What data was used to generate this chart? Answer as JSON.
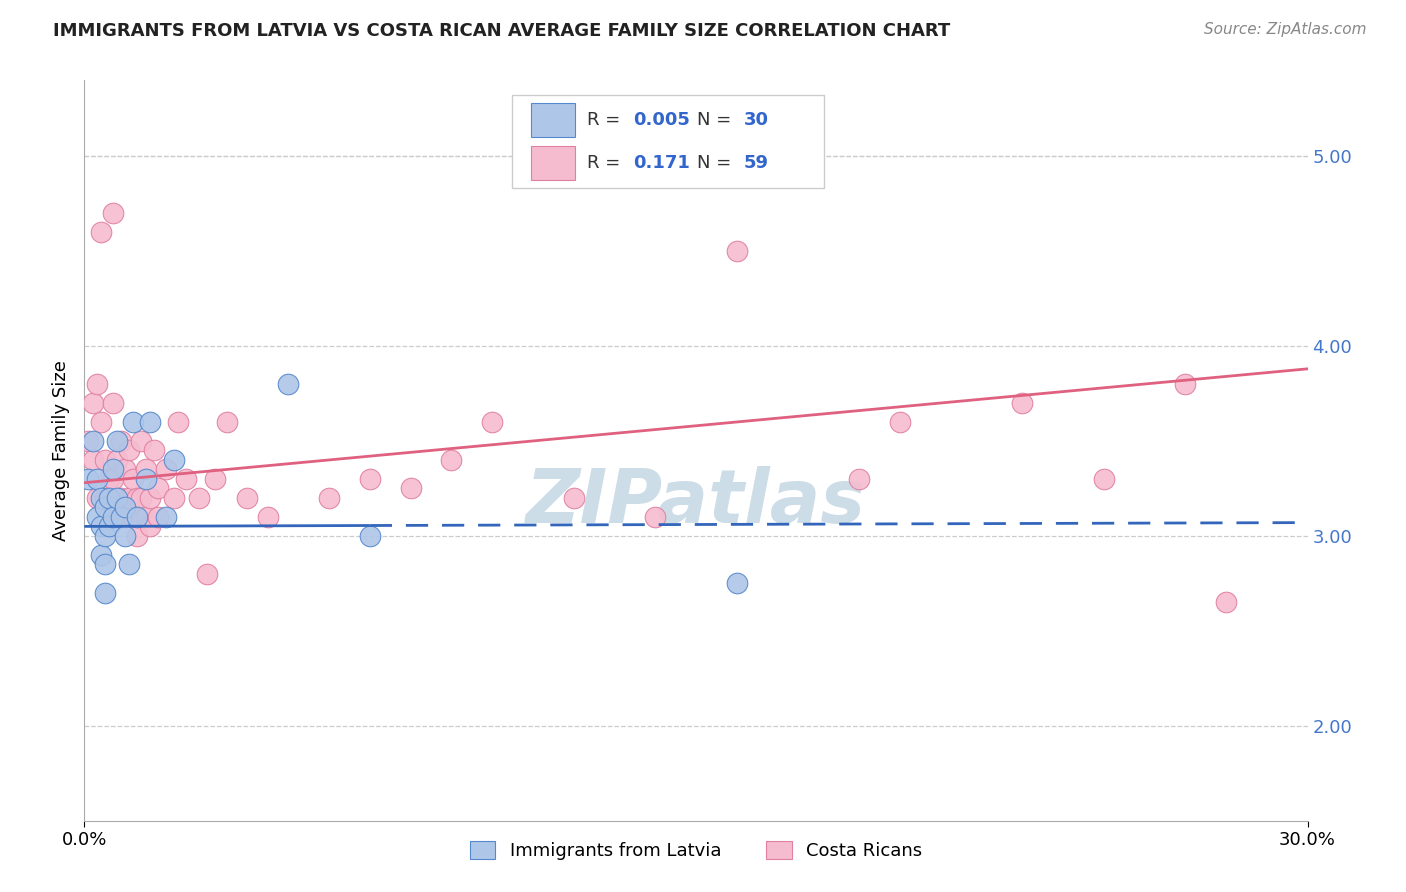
{
  "title": "IMMIGRANTS FROM LATVIA VS COSTA RICAN AVERAGE FAMILY SIZE CORRELATION CHART",
  "source": "Source: ZipAtlas.com",
  "ylabel": "Average Family Size",
  "xlim": [
    0.0,
    0.3
  ],
  "ylim": [
    1.5,
    5.4
  ],
  "yticks": [
    2.0,
    3.0,
    4.0,
    5.0
  ],
  "xticks": [
    0.0,
    0.3
  ],
  "xtick_labels": [
    "0.0%",
    "30.0%"
  ],
  "legend_labels": [
    "Immigrants from Latvia",
    "Costa Ricans"
  ],
  "blue_R": "0.005",
  "blue_N": "30",
  "pink_R": "0.171",
  "pink_N": "59",
  "blue_color": "#aec6e8",
  "pink_color": "#f5bcd0",
  "blue_edge_color": "#5588cc",
  "pink_edge_color": "#e080a0",
  "blue_line_color": "#3366bb",
  "pink_line_color": "#e06080",
  "watermark": "ZIPatlas",
  "watermark_color": "#ccdde8",
  "blue_line_y0": 3.05,
  "blue_line_y1": 3.07,
  "pink_line_y0": 3.28,
  "pink_line_y1": 3.88,
  "blue_scatter_x": [
    0.001,
    0.002,
    0.003,
    0.003,
    0.004,
    0.004,
    0.004,
    0.005,
    0.005,
    0.005,
    0.005,
    0.006,
    0.006,
    0.007,
    0.007,
    0.008,
    0.008,
    0.009,
    0.01,
    0.01,
    0.011,
    0.012,
    0.013,
    0.015,
    0.016,
    0.02,
    0.022,
    0.05,
    0.07,
    0.16
  ],
  "blue_scatter_y": [
    3.3,
    3.5,
    3.3,
    3.1,
    3.2,
    3.05,
    2.9,
    3.15,
    3.0,
    2.85,
    2.7,
    3.2,
    3.05,
    3.35,
    3.1,
    3.5,
    3.2,
    3.1,
    3.15,
    3.0,
    2.85,
    3.6,
    3.1,
    3.3,
    3.6,
    3.1,
    3.4,
    3.8,
    3.0,
    2.75
  ],
  "pink_scatter_x": [
    0.001,
    0.002,
    0.002,
    0.003,
    0.003,
    0.004,
    0.004,
    0.005,
    0.005,
    0.006,
    0.006,
    0.007,
    0.007,
    0.007,
    0.008,
    0.008,
    0.009,
    0.009,
    0.01,
    0.01,
    0.011,
    0.011,
    0.012,
    0.012,
    0.013,
    0.013,
    0.014,
    0.014,
    0.015,
    0.015,
    0.016,
    0.016,
    0.017,
    0.018,
    0.018,
    0.02,
    0.022,
    0.023,
    0.025,
    0.028,
    0.03,
    0.032,
    0.035,
    0.04,
    0.045,
    0.06,
    0.07,
    0.08,
    0.09,
    0.1,
    0.12,
    0.14,
    0.16,
    0.19,
    0.2,
    0.23,
    0.25,
    0.27,
    0.28
  ],
  "pink_scatter_y": [
    3.5,
    3.7,
    3.4,
    3.8,
    3.2,
    4.6,
    3.6,
    3.4,
    3.2,
    3.3,
    3.1,
    4.7,
    3.7,
    3.3,
    3.4,
    3.1,
    3.5,
    3.2,
    3.35,
    3.1,
    3.45,
    3.2,
    3.3,
    3.1,
    3.2,
    3.0,
    3.5,
    3.2,
    3.35,
    3.1,
    3.2,
    3.05,
    3.45,
    3.25,
    3.1,
    3.35,
    3.2,
    3.6,
    3.3,
    3.2,
    2.8,
    3.3,
    3.6,
    3.2,
    3.1,
    3.2,
    3.3,
    3.25,
    3.4,
    3.6,
    3.2,
    3.1,
    4.5,
    3.3,
    3.6,
    3.7,
    3.3,
    3.8,
    2.65
  ]
}
